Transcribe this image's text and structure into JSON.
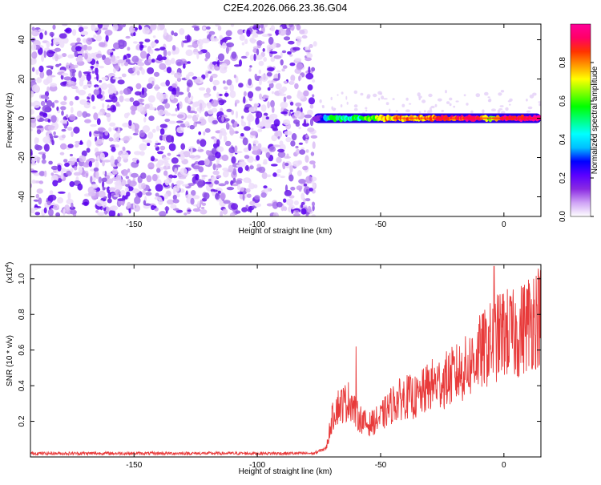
{
  "figure": {
    "title": "C2E4.2026.066.23.36.G04"
  },
  "chart_data": [
    {
      "type": "heatmap",
      "xlabel": "Height of straight line (km)",
      "ylabel": "Frequency (Hz)",
      "xlim": [
        -192,
        15
      ],
      "ylim": [
        -50,
        48
      ],
      "xticks": [
        -150,
        -100,
        -50,
        0
      ],
      "xtick_labels": [
        "-150",
        "-100",
        "-50",
        "0"
      ],
      "yticks": [
        -40,
        -20,
        0,
        20,
        40
      ],
      "ytick_labels": [
        "-40",
        "-20",
        "0",
        "20",
        "40"
      ],
      "noise_region_x": [
        -192,
        -77
      ],
      "signal_line": {
        "x_start": -77,
        "x_end": 15,
        "frequency_hz": 0,
        "description_points_x": [
          -75,
          -70,
          -60,
          -55,
          -50,
          -40,
          -30,
          -20,
          -10,
          -5,
          0,
          10
        ],
        "description_points_amp": [
          0.15,
          0.55,
          0.5,
          0.6,
          0.75,
          0.8,
          0.8,
          0.9,
          0.95,
          0.6,
          0.95,
          0.98
        ]
      },
      "colorbar": {
        "label": "Normalized spectral amplitude",
        "range": [
          0,
          1
        ],
        "ticks": [
          0,
          0.2,
          0.4,
          0.6,
          0.8
        ],
        "tick_labels": [
          "0.0",
          "0.2",
          "0.4",
          "0.6",
          "0.8"
        ],
        "colors": [
          "#ffffff",
          "#cfa3f5",
          "#8a2be2",
          "#5a00ff",
          "#0000ff",
          "#00bfff",
          "#00ffff",
          "#00ff80",
          "#00ff00",
          "#80ff00",
          "#ffff00",
          "#ff9900",
          "#ff3300",
          "#ff0066",
          "#ff0099"
        ]
      }
    },
    {
      "type": "line",
      "xlabel": "Height of straight line (km)",
      "ylabel": "SNR (10 * v/v)",
      "scale_label": "(x10",
      "scale_exponent": "4",
      "scale_close": ")",
      "xlim": [
        -192,
        15
      ],
      "ylim": [
        0,
        1.08
      ],
      "xticks": [
        -150,
        -100,
        -50,
        0
      ],
      "xtick_labels": [
        "-150",
        "-100",
        "-50",
        "0"
      ],
      "yticks": [
        0.2,
        0.4,
        0.6,
        0.8,
        1.0
      ],
      "ytick_labels": [
        "0.2",
        "0.4",
        "0.6",
        "0.8",
        "1.0"
      ],
      "color": "#e83a3a",
      "trend_x": [
        -192,
        -130,
        -77,
        -72,
        -70,
        -68,
        -65,
        -62,
        -60,
        -57,
        -55,
        -50,
        -45,
        -40,
        -35,
        -30,
        -25,
        -20,
        -15,
        -10,
        -5,
        0,
        5,
        10,
        15
      ],
      "trend_y": [
        0.02,
        0.02,
        0.02,
        0.05,
        0.2,
        0.28,
        0.3,
        0.32,
        0.24,
        0.2,
        0.18,
        0.22,
        0.3,
        0.34,
        0.33,
        0.4,
        0.42,
        0.46,
        0.5,
        0.58,
        0.64,
        0.7,
        0.68,
        0.76,
        0.8
      ],
      "spikes": [
        {
          "x": -60,
          "y": 0.62
        },
        {
          "x": -4,
          "y": 1.07
        },
        {
          "x": 12,
          "y": 1.0
        }
      ]
    }
  ]
}
